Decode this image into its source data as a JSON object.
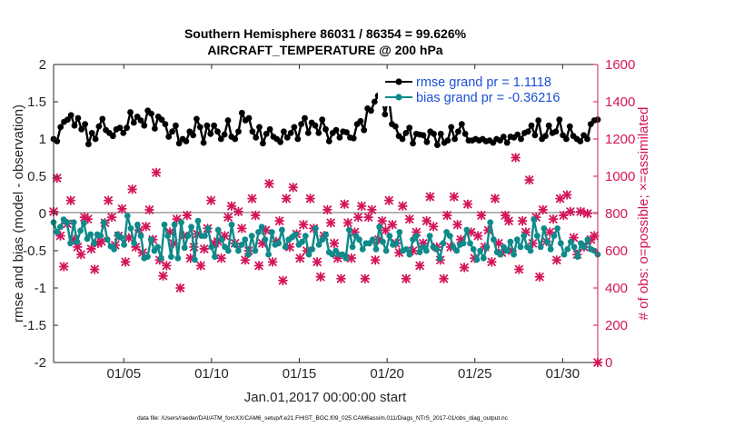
{
  "chart_data": {
    "type": "line",
    "title": "Southern Hemisphere 86031 / 86354 = 99.626%",
    "subtitle": "AIRCRAFT_TEMPERATURE @ 200 hPa",
    "xlabel": "Jan.01,2017 00:00:00 start",
    "ylabel_left": "rmse and bias (model - observation)",
    "ylabel_right": "# of obs: o=possible; ×=assimilated",
    "xlim": [
      1,
      32
    ],
    "ylim_left": [
      -2,
      2
    ],
    "ylim_right": [
      0,
      1600
    ],
    "x_ticks": [
      5,
      10,
      15,
      20,
      25,
      30
    ],
    "x_tick_labels": [
      "01/05",
      "01/10",
      "01/15",
      "01/20",
      "01/25",
      "01/30"
    ],
    "y_ticks_left": [
      "2",
      "1.5",
      "1",
      "0.5",
      "0",
      "-0.5",
      "-1",
      "-1.5",
      "-2"
    ],
    "y_ticks_right": [
      "1600",
      "1400",
      "1200",
      "1000",
      "800",
      "600",
      "400",
      "200",
      "0"
    ],
    "legend": [
      "rmse grand pr = 1.1118",
      "bias grand pr = -0.36216"
    ],
    "footnote": "data file: /Users/raeder/DAI/ATM_forcXX/CAM6_setup/f.e21.FHIST_BGC.f09_025.CAM6assim.011/Diags_NTrS_2017-01/obs_diag_output.nc",
    "colors": {
      "rmse": "#000000",
      "bias": "#0e8a8a",
      "obs": "#d4145a",
      "zero_line": "#b4b4b4"
    },
    "series": [
      {
        "name": "rmse",
        "values": [
          1.0,
          0.97,
          1.16,
          1.23,
          1.26,
          1.32,
          1.18,
          1.28,
          1.13,
          1.2,
          0.93,
          1.08,
          1.0,
          1.17,
          1.27,
          1.12,
          1.08,
          1.04,
          1.13,
          1.15,
          1.08,
          1.15,
          1.36,
          1.22,
          1.3,
          1.25,
          1.18,
          1.38,
          1.34,
          1.14,
          1.3,
          1.26,
          1.2,
          1.03,
          1.1,
          1.18,
          0.94,
          1.0,
          0.97,
          1.1,
          1.05,
          1.27,
          1.16,
          0.95,
          1.18,
          1.07,
          1.18,
          1.1,
          1.0,
          1.06,
          1.25,
          1.03,
          1.0,
          1.1,
          1.35,
          1.25,
          1.28,
          1.1,
          1.02,
          1.16,
          0.94,
          1.07,
          1.13,
          1.03,
          1.0,
          0.96,
          1.1,
          1.02,
          1.08,
          1.16,
          1.0,
          1.2,
          1.28,
          1.08,
          1.22,
          1.18,
          1.08,
          1.26,
          1.13,
          0.97,
          1.08,
          1.12,
          1.02,
          1.1,
          1.09,
          1.02,
          1.01,
          1.2,
          1.24,
          1.12,
          1.41,
          1.38,
          1.5,
          1.58,
          1.6,
          1.33,
          1.6,
          1.2,
          1.17,
          1.04,
          1.0,
          1.08,
          1.15,
          0.94,
          1.07,
          1.06,
          1.05,
          0.96,
          1.1,
          1.07,
          0.92,
          1.07,
          0.95,
          0.98,
          1.16,
          1.0,
          1.1,
          1.2,
          1.07,
          0.98,
          0.98,
          1.0,
          0.98,
          1.0,
          0.97,
          0.98,
          0.95,
          1.0,
          0.98,
          1.03,
          0.95,
          1.03,
          1.02,
          1.06,
          1.0,
          1.08,
          1.1,
          1.18,
          1.05,
          1.25,
          1.0,
          1.04,
          1.18,
          1.08,
          1.1,
          1.26,
          1.05,
          1.0,
          1.17,
          1.04,
          1.0,
          0.97,
          1.05,
          1.0,
          1.2,
          1.25,
          1.26
        ]
      },
      {
        "name": "bias",
        "values": [
          -0.12,
          -0.25,
          -0.18,
          -0.08,
          -0.12,
          -0.4,
          -0.12,
          -0.38,
          -0.23,
          -0.13,
          -0.34,
          -0.28,
          -0.4,
          -0.28,
          -0.3,
          -0.12,
          -0.35,
          -0.44,
          -0.48,
          -0.28,
          -0.32,
          -0.42,
          -0.03,
          -0.2,
          -0.4,
          -0.15,
          -0.3,
          -0.6,
          -0.58,
          -0.35,
          -0.5,
          -0.45,
          -0.6,
          -0.15,
          -0.3,
          -0.58,
          -0.15,
          -0.6,
          -0.12,
          -0.46,
          -0.3,
          -0.18,
          -0.62,
          -0.1,
          -0.3,
          -0.3,
          -0.2,
          -0.45,
          -0.58,
          -0.22,
          -0.35,
          -0.45,
          -0.5,
          -0.15,
          -0.42,
          -0.5,
          -0.42,
          -0.35,
          -0.55,
          -0.3,
          -0.5,
          -0.25,
          -0.18,
          -0.35,
          -0.55,
          -0.25,
          -0.42,
          -0.4,
          -0.22,
          -0.45,
          -0.35,
          -0.32,
          -0.28,
          -0.42,
          -0.38,
          -0.3,
          -0.55,
          -0.48,
          -0.2,
          -0.42,
          -0.35,
          -0.28,
          -0.52,
          -0.55,
          -0.5,
          -0.55,
          -0.55,
          -0.6,
          -0.22,
          -0.45,
          -0.3,
          -0.35,
          -0.48,
          -0.4,
          -0.4,
          -0.35,
          -0.48,
          -0.18,
          -0.38,
          -0.5,
          -0.3,
          -0.42,
          -0.4,
          -0.25,
          -0.5,
          -0.48,
          -0.55,
          -0.35,
          -0.3,
          -0.52,
          -0.45,
          -0.5,
          -0.3,
          -0.45,
          -0.48,
          -0.6,
          -0.4,
          -0.25,
          -0.3,
          -0.45,
          -0.5,
          -0.42,
          -0.4,
          -0.22,
          -0.4,
          -0.48,
          -0.62,
          -0.5,
          -0.6,
          -0.45,
          -0.12,
          -0.35,
          -0.52,
          -0.55,
          -0.45,
          -0.5,
          -0.38,
          -0.55,
          -0.35,
          -0.45,
          -0.3,
          -0.45,
          -0.5,
          -0.08,
          -0.3,
          -0.45,
          -0.2,
          -0.38,
          -0.48,
          -0.3,
          -0.2,
          -0.4,
          -0.55,
          -0.48,
          -0.38,
          -0.45,
          -0.58,
          -0.4,
          -0.45,
          -0.35,
          -0.48,
          -0.5,
          -0.55
        ]
      },
      {
        "name": "obs",
        "marker": "×",
        "values": [
          810,
          990,
          680,
          515,
          745,
          870,
          660,
          620,
          580,
          780,
          770,
          610,
          500,
          640,
          650,
          750,
          870,
          780,
          630,
          680,
          825,
          540,
          670,
          930,
          620,
          710,
          590,
          730,
          820,
          660,
          1020,
          550,
          465,
          520,
          700,
          640,
          770,
          400,
          680,
          790,
          560,
          620,
          690,
          520,
          610,
          720,
          870,
          640,
          650,
          560,
          680,
          780,
          840,
          640,
          810,
          720,
          550,
          600,
          880,
          790,
          520,
          640,
          710,
          960,
          540,
          650,
          760,
          440,
          880,
          620,
          940,
          690,
          560,
          740,
          600,
          880,
          720,
          540,
          460,
          680,
          820,
          750,
          640,
          560,
          450,
          850,
          750,
          560,
          700,
          780,
          840,
          450,
          780,
          820,
          550,
          660,
          760,
          710,
          870,
          740,
          640,
          590,
          840,
          450,
          770,
          600,
          700,
          520,
          640,
          760,
          890,
          730,
          620,
          550,
          450,
          790,
          620,
          890,
          740,
          660,
          510,
          850,
          700,
          560,
          680,
          790,
          620,
          710,
          540,
          880,
          640,
          590,
          790,
          760,
          600,
          1100,
          500,
          760,
          700,
          980,
          640,
          780,
          460,
          820,
          650,
          700,
          770,
          550,
          880,
          790,
          900,
          810,
          670,
          580,
          810,
          620,
          800,
          660,
          680,
          0
        ]
      }
    ]
  }
}
